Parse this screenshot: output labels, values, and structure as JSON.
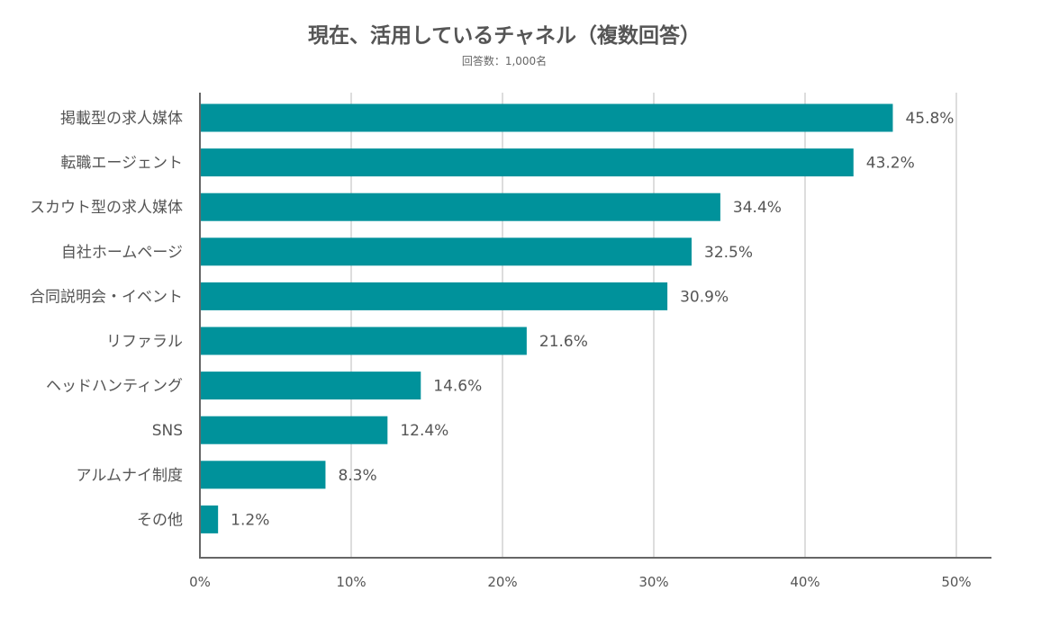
{
  "chart_data": {
    "type": "bar",
    "orientation": "horizontal",
    "title": "現在、活用しているチャネル（複数回答）",
    "subtitle": "回答数：1,000名",
    "categories": [
      "掲載型の求人媒体",
      "転職エージェント",
      "スカウト型の求人媒体",
      "自社ホームページ",
      "合同説明会・イベント",
      "リファラル",
      "ヘッドハンティング",
      "SNS",
      "アルムナイ制度",
      "その他"
    ],
    "values": [
      45.8,
      43.2,
      34.4,
      32.5,
      30.9,
      21.6,
      14.6,
      12.4,
      8.3,
      1.2
    ],
    "value_labels": [
      "45.8%",
      "43.2%",
      "34.4%",
      "32.5%",
      "30.9%",
      "21.6%",
      "14.6%",
      "12.4%",
      "8.3%",
      "1.2%"
    ],
    "xlim": [
      0,
      50
    ],
    "x_ticks": [
      0,
      10,
      20,
      30,
      40,
      50
    ],
    "x_tick_labels": [
      "0%",
      "10%",
      "20%",
      "30%",
      "40%",
      "50%"
    ],
    "grid": "vertical",
    "legend": "none",
    "colors": {
      "bar": "#00929b",
      "grid": "#dddddd",
      "axis": "#666666",
      "text": "#555555"
    }
  }
}
